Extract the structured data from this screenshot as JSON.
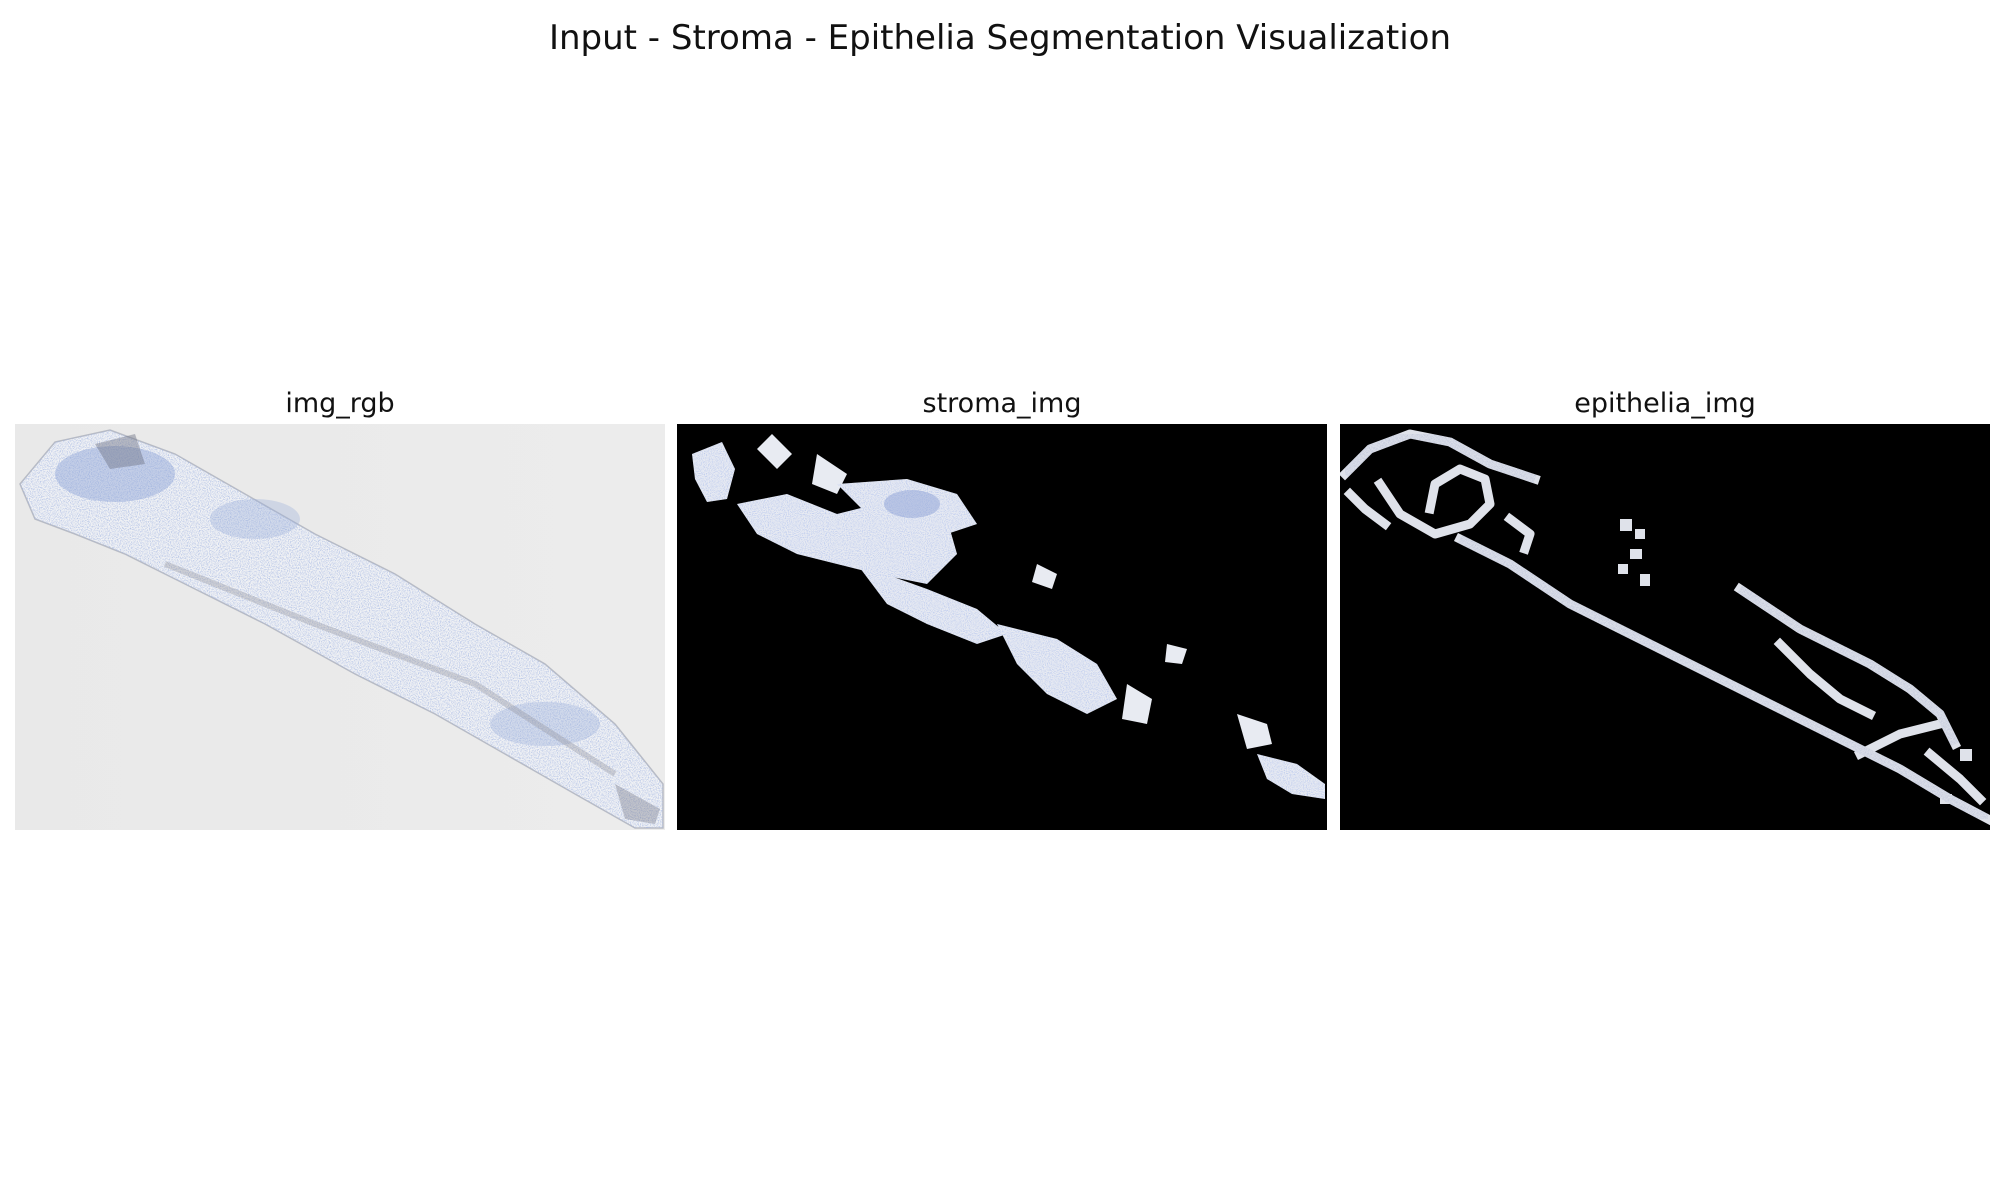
{
  "figure": {
    "title": "Input - Stroma - Epithelia Segmentation Visualization"
  },
  "panels": [
    {
      "title": "img_rgb"
    },
    {
      "title": "stroma_img"
    },
    {
      "title": "epithelia_img"
    }
  ]
}
